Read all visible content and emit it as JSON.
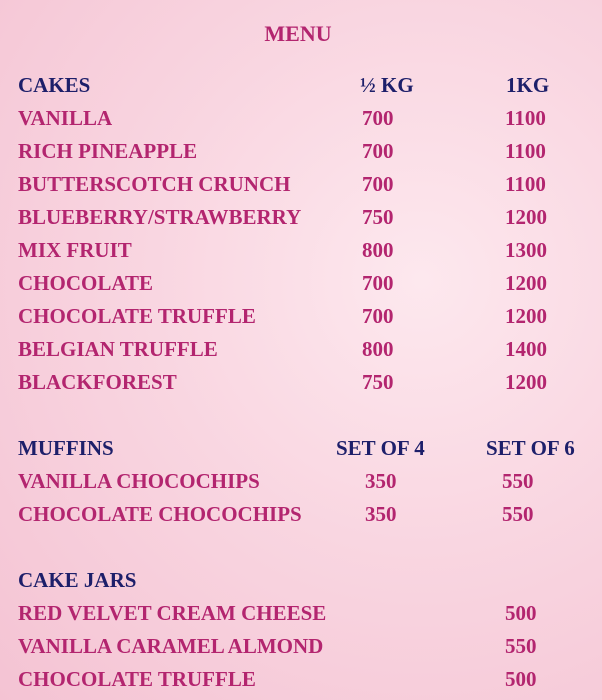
{
  "title": "MENU",
  "colors": {
    "heading": "#1d1f6a",
    "item": "#b3256f",
    "background": "#f9d6e1"
  },
  "cakes": {
    "heading": "CAKES",
    "columns": [
      "½ KG",
      "1KG"
    ],
    "items": [
      {
        "name": "VANILLA",
        "prices": [
          "700",
          "1100"
        ]
      },
      {
        "name": "RICH PINEAPPLE",
        "prices": [
          "700",
          "1100"
        ]
      },
      {
        "name": "BUTTERSCOTCH CRUNCH",
        "prices": [
          "700",
          "1100"
        ]
      },
      {
        "name": "BLUEBERRY/STRAWBERRY",
        "prices": [
          "750",
          "1200"
        ]
      },
      {
        "name": "MIX FRUIT",
        "prices": [
          "800",
          "1300"
        ]
      },
      {
        "name": "CHOCOLATE",
        "prices": [
          "700",
          "1200"
        ]
      },
      {
        "name": "CHOCOLATE TRUFFLE",
        "prices": [
          "700",
          "1200"
        ]
      },
      {
        "name": "BELGIAN TRUFFLE",
        "prices": [
          "800",
          "1400"
        ]
      },
      {
        "name": "BLACKFOREST",
        "prices": [
          "750",
          "1200"
        ]
      }
    ]
  },
  "muffins": {
    "heading": "MUFFINS",
    "columns": [
      "SET OF 4",
      "SET OF 6"
    ],
    "items": [
      {
        "name": "VANILLA CHOCOCHIPS",
        "prices": [
          "350",
          "550"
        ]
      },
      {
        "name": "CHOCOLATE CHOCOCHIPS",
        "prices": [
          "350",
          "550"
        ]
      }
    ]
  },
  "cake_jars": {
    "heading": "CAKE  JARS",
    "items": [
      {
        "name": "RED VELVET CREAM CHEESE",
        "prices": [
          "500"
        ]
      },
      {
        "name": "VANILLA  CARAMEL ALMOND",
        "prices": [
          "550"
        ]
      },
      {
        "name": "CHOCOLATE TRUFFLE",
        "prices": [
          "500"
        ]
      }
    ]
  }
}
